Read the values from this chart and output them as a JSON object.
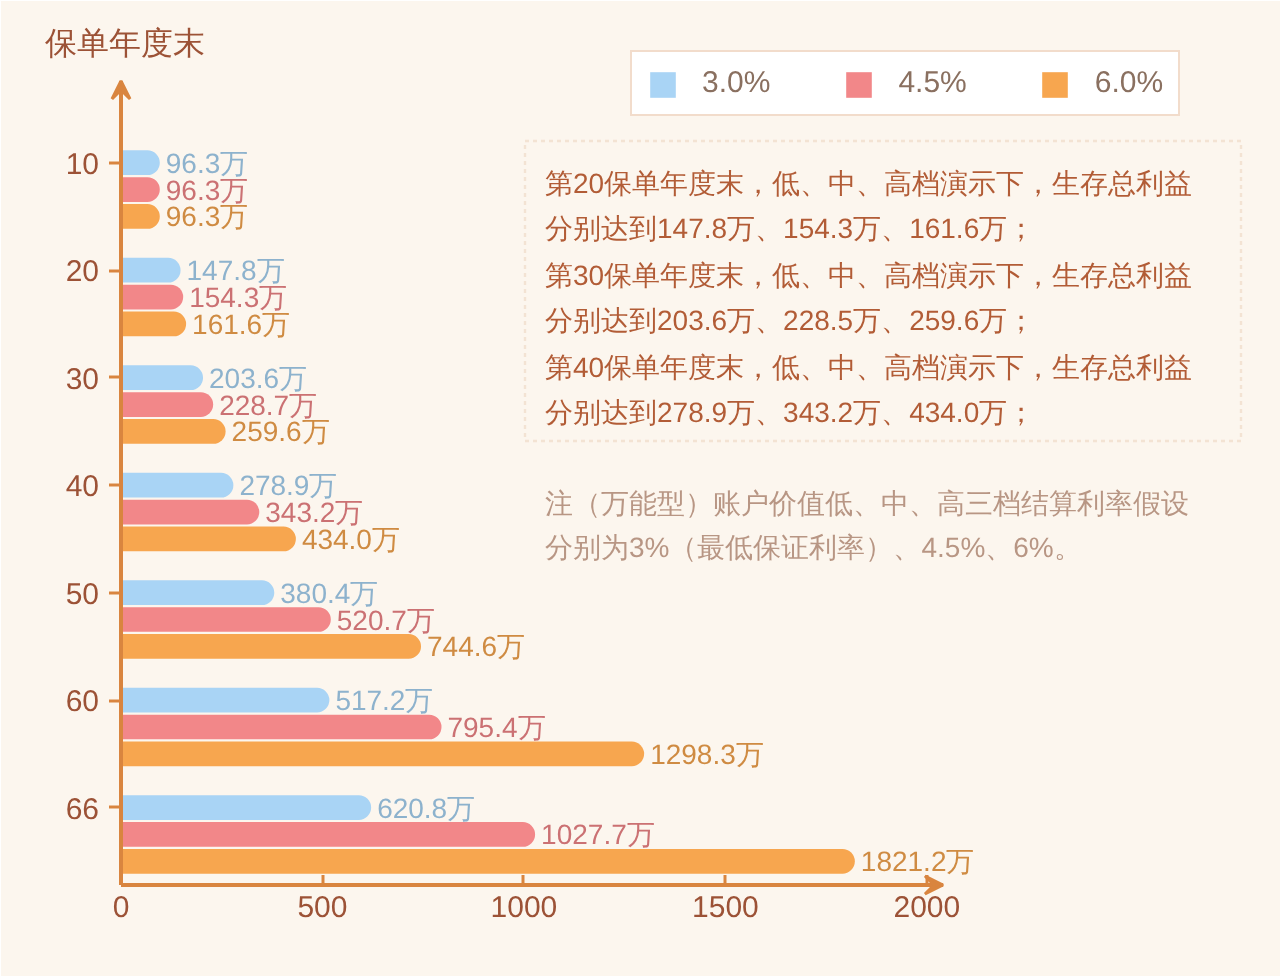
{
  "chart_data": {
    "type": "bar",
    "orientation": "horizontal",
    "ylabel": "保单年度末",
    "categories": [
      "10",
      "20",
      "30",
      "40",
      "50",
      "60",
      "66"
    ],
    "series": [
      {
        "name": "3.0%",
        "color": "#a9d4f5",
        "values": [
          96.3,
          147.8,
          203.6,
          278.9,
          380.4,
          517.2,
          620.8
        ],
        "value_labels": [
          "96.3万",
          "147.8万",
          "203.6万",
          "278.9万",
          "380.4万",
          "517.2万",
          "620.8万"
        ]
      },
      {
        "name": "4.5%",
        "color": "#f28789",
        "values": [
          96.3,
          154.3,
          228.7,
          343.2,
          520.7,
          795.4,
          1027.7
        ],
        "value_labels": [
          "96.3万",
          "154.3万",
          "228.7万",
          "343.2万",
          "520.7万",
          "795.4万",
          "1027.7万"
        ]
      },
      {
        "name": "6.0%",
        "color": "#f7a64f",
        "values": [
          96.3,
          161.6,
          259.6,
          434.0,
          744.6,
          1298.3,
          1821.2
        ],
        "value_labels": [
          "96.3万",
          "161.6万",
          "259.6万",
          "434.0万",
          "744.6万",
          "1298.3万",
          "1821.2万"
        ]
      }
    ],
    "xlim": [
      0,
      2040
    ],
    "xticks": [
      0,
      500,
      1000,
      1500,
      2000
    ],
    "grid": false,
    "legend": "top right",
    "annotations": [
      "第20保单年度末，低、中、高档演示下，生存总利益分别达到147.8万、154.3万、161.6万；",
      "第30保单年度末，低、中、高档演示下，生存总利益分别达到203.6万、228.5万、259.6万；",
      "第40保单年度末，低、中、高档演示下，生存总利益分别达到278.9万、343.2万、434.0万；",
      "注（万能型）账户价值低、中、高三档结算利率假设分别为3%（最低保证利率）、4.5%、6%。"
    ]
  }
}
